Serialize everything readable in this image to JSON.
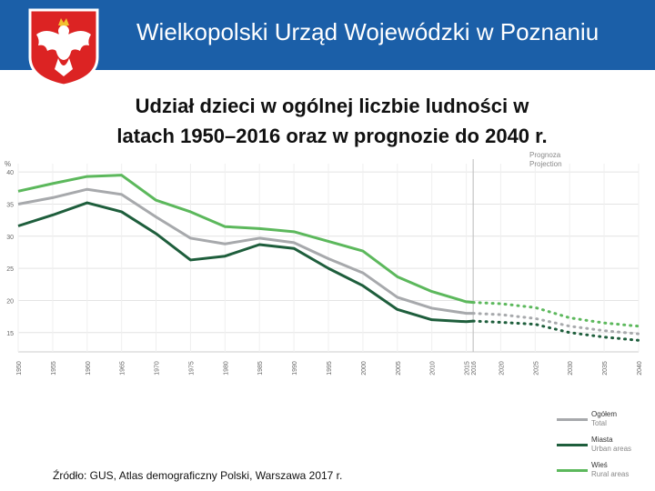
{
  "header": {
    "title": "Wielkopolski Urząd Wojewódzki w Poznaniu",
    "bg_color": "#1b5fa8",
    "emblem_icon": "polish-eagle-emblem-icon"
  },
  "slide": {
    "title_line1": "Udział dzieci w ogólnej liczbie ludności w",
    "title_line2": "latach 1950–2016 oraz w prognozie do 2040 r.",
    "source": "Źródło: GUS, Atlas demograficzny Polski, Warszawa 2017 r."
  },
  "chart_data": {
    "type": "line",
    "ylabel": "%",
    "ylim": [
      12,
      42
    ],
    "xlim": [
      1950,
      2040
    ],
    "y_ticks": [
      15,
      20,
      25,
      30,
      35,
      40
    ],
    "x_ticks": [
      1950,
      1955,
      1960,
      1965,
      1970,
      1975,
      1980,
      1985,
      1990,
      1995,
      2000,
      2005,
      2010,
      2015,
      2016,
      2020,
      2025,
      2030,
      2035,
      2040
    ],
    "projection_label": [
      "Prognoza",
      "Projection"
    ],
    "projection_start": 2016,
    "series": [
      {
        "name": "Ogółem",
        "name_en": "Total",
        "color": "#a7a9ac",
        "x": [
          1950,
          1955,
          1960,
          1965,
          1970,
          1975,
          1980,
          1985,
          1990,
          1995,
          2000,
          2005,
          2010,
          2015,
          2016
        ],
        "values": [
          35.0,
          36.0,
          37.3,
          36.5,
          33.0,
          29.7,
          28.8,
          29.7,
          29.0,
          26.5,
          24.3,
          20.5,
          18.8,
          18.0,
          18.0
        ],
        "projection_x": [
          2016,
          2020,
          2025,
          2030,
          2035,
          2040
        ],
        "projection_values": [
          18.0,
          17.8,
          17.2,
          16.0,
          15.3,
          14.8
        ]
      },
      {
        "name": "Miasta",
        "name_en": "Urban areas",
        "color": "#1e5e3c",
        "x": [
          1950,
          1955,
          1960,
          1965,
          1970,
          1975,
          1980,
          1985,
          1990,
          1995,
          2000,
          2005,
          2010,
          2015,
          2016
        ],
        "values": [
          31.6,
          33.3,
          35.2,
          33.8,
          30.4,
          26.3,
          26.9,
          28.7,
          28.1,
          25.0,
          22.3,
          18.6,
          17.0,
          16.7,
          16.8
        ],
        "projection_x": [
          2016,
          2020,
          2025,
          2030,
          2035,
          2040
        ],
        "projection_values": [
          16.8,
          16.6,
          16.3,
          15.0,
          14.3,
          13.8
        ]
      },
      {
        "name": "Wieś",
        "name_en": "Rural areas",
        "color": "#5cb85c",
        "x": [
          1950,
          1955,
          1960,
          1965,
          1970,
          1975,
          1980,
          1985,
          1990,
          1995,
          2000,
          2005,
          2010,
          2015,
          2016
        ],
        "values": [
          37.0,
          38.2,
          39.3,
          39.5,
          35.6,
          33.8,
          31.5,
          31.2,
          30.7,
          29.2,
          27.7,
          23.7,
          21.4,
          19.8,
          19.7
        ],
        "projection_x": [
          2016,
          2020,
          2025,
          2030,
          2035,
          2040
        ],
        "projection_values": [
          19.7,
          19.5,
          18.9,
          17.3,
          16.5,
          16.0
        ]
      }
    ]
  }
}
